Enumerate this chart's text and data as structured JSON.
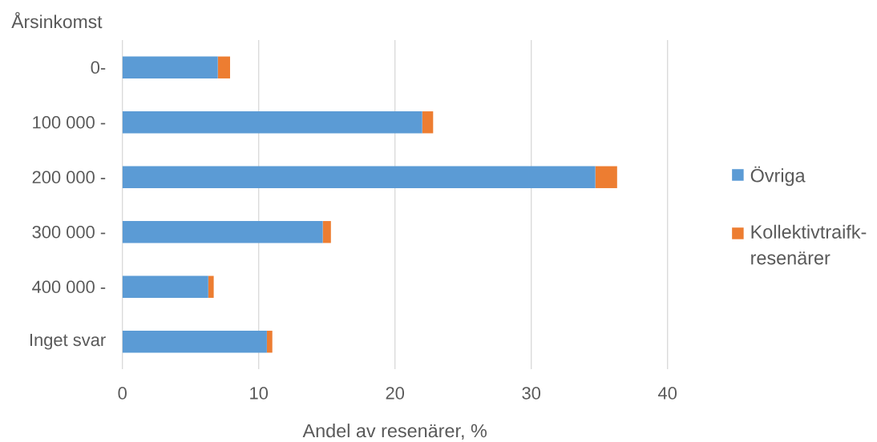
{
  "chart_data": {
    "type": "bar",
    "orientation": "horizontal",
    "stacked": true,
    "xlabel": "Andel av resenärer, %",
    "ylabel": "Årsinkomst",
    "categories": [
      "0-",
      "100 000 -",
      "200 000 -",
      "300 000 -",
      "400 000 -",
      "Inget svar"
    ],
    "series": [
      {
        "name": "Övriga",
        "color": "#5b9bd5",
        "values": [
          7.0,
          22.0,
          34.7,
          14.7,
          6.3,
          10.6
        ]
      },
      {
        "name": "Kollektivtraifk-resenärer",
        "color": "#ed7d31",
        "values": [
          0.9,
          0.8,
          1.6,
          0.6,
          0.4,
          0.4
        ]
      }
    ],
    "xlim": [
      0,
      40
    ],
    "xticks": [
      0,
      10,
      20,
      30,
      40
    ],
    "grid": "x",
    "legend": "right"
  }
}
